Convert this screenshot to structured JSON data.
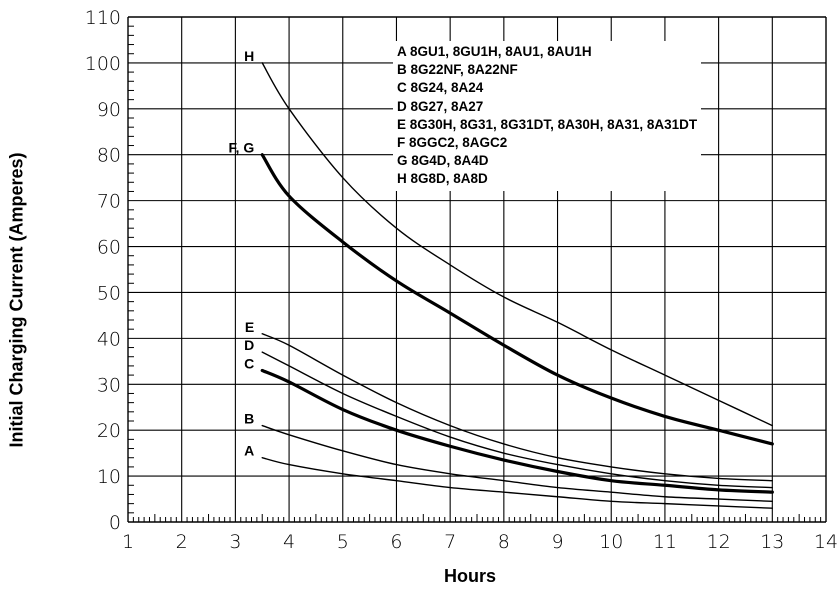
{
  "chart_data": {
    "type": "line",
    "xlabel": "Hours",
    "ylabel": "Initial Charging Current (Amperes)",
    "xlim": [
      1,
      14
    ],
    "ylim": [
      0,
      110
    ],
    "x_ticks": [
      "1",
      "2",
      "3",
      "4",
      "5",
      "6",
      "7",
      "8",
      "9",
      "10",
      "11",
      "12",
      "13",
      "14"
    ],
    "y_ticks": [
      "0",
      "10",
      "20",
      "30",
      "40",
      "50",
      "60",
      "70",
      "80",
      "90",
      "100",
      "110"
    ],
    "grid": true,
    "legend_position": "top-right",
    "series": [
      {
        "name": "H",
        "label_text": "H",
        "x": [
          3.5,
          4,
          5,
          6,
          7,
          8,
          9,
          10,
          11,
          12,
          13
        ],
        "y": [
          100,
          90,
          75,
          64,
          56,
          49,
          43.5,
          37.5,
          32,
          26.5,
          21
        ],
        "thick": false
      },
      {
        "name": "F, G",
        "label_text": "F, G",
        "x": [
          3.5,
          4,
          5,
          6,
          7,
          8,
          9,
          10,
          11,
          12,
          13
        ],
        "y": [
          80,
          71,
          61,
          52.5,
          45.5,
          38.5,
          32,
          27,
          23,
          20,
          17
        ],
        "thick": true
      },
      {
        "name": "E",
        "label_text": "E",
        "x": [
          3.5,
          4,
          5,
          6,
          7,
          8,
          9,
          10,
          11,
          12,
          13
        ],
        "y": [
          41,
          38.5,
          32,
          26,
          21,
          17,
          14,
          12,
          10.5,
          9.5,
          9
        ],
        "thick": false
      },
      {
        "name": "D",
        "label_text": "D",
        "x": [
          3.5,
          4,
          5,
          6,
          7,
          8,
          9,
          10,
          11,
          12,
          13
        ],
        "y": [
          37,
          34,
          28,
          23,
          18.5,
          15,
          12.5,
          10.5,
          9,
          8,
          7.5
        ],
        "thick": false
      },
      {
        "name": "C",
        "label_text": "C",
        "x": [
          3.5,
          4,
          5,
          6,
          7,
          8,
          9,
          10,
          11,
          12,
          13
        ],
        "y": [
          33,
          30.5,
          24.5,
          20,
          16.5,
          13.5,
          11,
          9,
          8,
          7,
          6.5
        ],
        "thick": true
      },
      {
        "name": "B",
        "label_text": "B",
        "x": [
          3.5,
          4,
          5,
          6,
          7,
          8,
          9,
          10,
          11,
          12,
          13
        ],
        "y": [
          21,
          19,
          15.5,
          12.5,
          10.5,
          9,
          7.5,
          6.5,
          5.5,
          5,
          4.5
        ],
        "thick": false
      },
      {
        "name": "A",
        "label_text": "A",
        "x": [
          3.5,
          4,
          5,
          6,
          7,
          8,
          9,
          10,
          11,
          12,
          13
        ],
        "y": [
          14,
          12.5,
          10.5,
          9,
          7.5,
          6.5,
          5.5,
          4.5,
          4,
          3.5,
          3
        ],
        "thick": false
      }
    ]
  },
  "legend": [
    "A 8GU1, 8GU1H, 8AU1, 8AU1H",
    "B 8G22NF, 8A22NF",
    "C 8G24, 8A24",
    "D 8G27, 8A27",
    "E 8G30H, 8G31, 8G31DT, 8A30H, 8A31, 8A31DT",
    "F 8GGC2, 8AGC2",
    "G 8G4D, 8A4D",
    "H 8G8D, 8A8D"
  ]
}
